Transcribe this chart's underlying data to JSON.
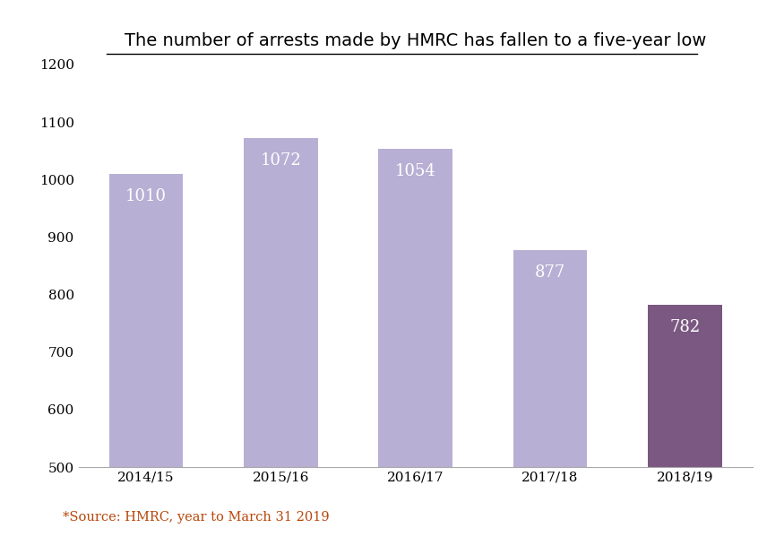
{
  "categories": [
    "2014/15",
    "2015/16",
    "2016/17",
    "2017/18",
    "2018/19"
  ],
  "values": [
    1010,
    1072,
    1054,
    877,
    782
  ],
  "bar_colors": [
    "#b8afd4",
    "#b8afd4",
    "#b8afd4",
    "#b8afd4",
    "#7b5882"
  ],
  "label_color": "#ffffff",
  "title": "The number of arrests made by HMRC has fallen to a five-year low",
  "title_fontsize": 14,
  "ylabel": "",
  "xlabel": "",
  "ylim": [
    500,
    1200
  ],
  "yticks": [
    500,
    600,
    700,
    800,
    900,
    1000,
    1100,
    1200
  ],
  "source_text": "*Source: HMRC, year to March 31 2019",
  "source_color": "#b8470a",
  "background_color": "#ffffff",
  "bar_label_fontsize": 13,
  "bar_width": 0.55
}
